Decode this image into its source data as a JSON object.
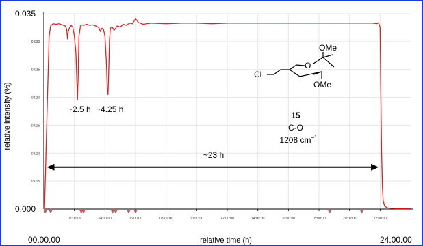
{
  "colors": {
    "frame": "#1e3fd6",
    "trace": "#e02020",
    "grid": "#e6e6e6",
    "axis": "#000000",
    "marker": "#c06060"
  },
  "chart_data": {
    "type": "line",
    "xlabel": "relative time (h)",
    "ylabel": "relative intensity (%)",
    "xlim": [
      0,
      24
    ],
    "ylim": [
      0,
      0.035
    ],
    "x_end_labels": [
      "00.00.00",
      "24.00.00"
    ],
    "x_minor_ticks": [
      {
        "x": 2,
        "label": "02:00:00"
      },
      {
        "x": 4,
        "label": "04:00:00"
      },
      {
        "x": 6,
        "label": "06:00:00"
      },
      {
        "x": 8,
        "label": "08:00:00"
      },
      {
        "x": 10,
        "label": "10:00:00"
      },
      {
        "x": 12,
        "label": "12:00:00"
      },
      {
        "x": 14,
        "label": "14:00:00"
      },
      {
        "x": 16,
        "label": "16:00:00"
      },
      {
        "x": 18,
        "label": "18:00:00"
      },
      {
        "x": 20,
        "label": "20:00:00"
      },
      {
        "x": 22,
        "label": "22:00:00"
      }
    ],
    "y_major_ticks": [
      {
        "y": 0,
        "label": "0.000"
      },
      {
        "y": 0.035,
        "label": "0.035"
      }
    ],
    "y_minor_ticks": [
      {
        "y": 0.005,
        "label": "0.005"
      },
      {
        "y": 0.01,
        "label": "0.010"
      },
      {
        "y": 0.015,
        "label": "0.015"
      },
      {
        "y": 0.02,
        "label": "0.020"
      },
      {
        "y": 0.025,
        "label": "0.025"
      },
      {
        "y": 0.03,
        "label": "0.030"
      }
    ],
    "grid": true,
    "series": [
      {
        "x": [
          0,
          0.05,
          0.2,
          0.35,
          0.45,
          0.6,
          0.8,
          1.0,
          1.2,
          1.4,
          1.5,
          1.55,
          1.6,
          1.7,
          1.8,
          1.9,
          2.0,
          2.1,
          2.15,
          2.2,
          2.25,
          2.3,
          2.4,
          2.5,
          2.6,
          2.8,
          3.0,
          3.2,
          3.4,
          3.6,
          3.7,
          3.8,
          3.9,
          4.0,
          4.1,
          4.15,
          4.2,
          4.25,
          4.3,
          4.35,
          4.4,
          4.5,
          4.6,
          4.8,
          5.0,
          5.2,
          5.4,
          5.6,
          5.8,
          6.0,
          6.2,
          6.5,
          7.0,
          8.0,
          9.0,
          10.0,
          11.0,
          12.0,
          13.0,
          14.0,
          15.0,
          16.0,
          17.0,
          18.0,
          19.0,
          20.0,
          21.0,
          21.5,
          21.8,
          21.9,
          22.0,
          22.05,
          22.1,
          22.15,
          22.2,
          22.3,
          22.5,
          23.0,
          24.0
        ],
        "y": [
          0.0002,
          0.0002,
          0.016,
          0.031,
          0.0328,
          0.0332,
          0.0331,
          0.0332,
          0.033,
          0.0328,
          0.0322,
          0.0305,
          0.0318,
          0.0326,
          0.0329,
          0.0325,
          0.031,
          0.028,
          0.024,
          0.0195,
          0.024,
          0.031,
          0.0328,
          0.033,
          0.0329,
          0.0331,
          0.0329,
          0.033,
          0.0328,
          0.0325,
          0.0318,
          0.0324,
          0.0322,
          0.031,
          0.026,
          0.0215,
          0.0205,
          0.025,
          0.0305,
          0.0322,
          0.0326,
          0.0325,
          0.032,
          0.0328,
          0.0326,
          0.0331,
          0.0329,
          0.0333,
          0.0332,
          0.0341,
          0.0334,
          0.0331,
          0.0333,
          0.0332,
          0.0333,
          0.0333,
          0.0332,
          0.0333,
          0.0333,
          0.0333,
          0.0333,
          0.0333,
          0.0333,
          0.0333,
          0.0333,
          0.0333,
          0.0333,
          0.0333,
          0.0332,
          0.0334,
          0.0325,
          0.02,
          0.01,
          0.004,
          0.0015,
          0.0005,
          0.0002,
          0.0001,
          0.0001
        ]
      }
    ],
    "event_markers_x": [
      0.1,
      0.45,
      2.45,
      2.6,
      4.5,
      4.7,
      5.55,
      6.0,
      18.7,
      20.8
    ],
    "annotations": {
      "dip1": "~2.5 h",
      "dip2": "~4.25 h",
      "duration": "~23 h",
      "duration_range_x": [
        0.2,
        21.9
      ],
      "duration_y": 0.0075,
      "compound_number": "15",
      "bond": "C-O",
      "wavenumber": "1208 cm",
      "wavenumber_exponent": "−1"
    },
    "structure": {
      "cl": "Cl",
      "ring_o": "O",
      "ome_top": "OMe",
      "ome_bottom": "OMe"
    }
  }
}
